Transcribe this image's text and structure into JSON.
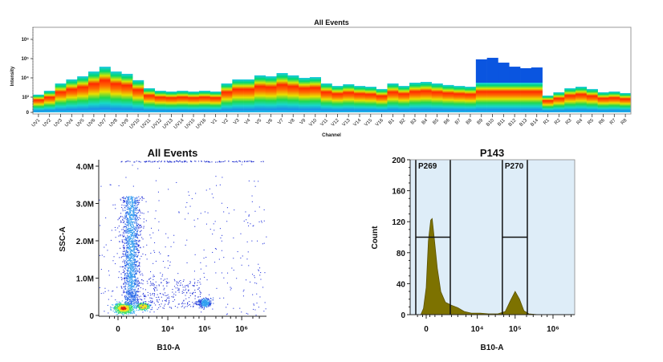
{
  "chart_data": [
    {
      "type": "heatmap",
      "title": "All Events",
      "xlabel": "Channel",
      "ylabel": "Intensity",
      "y_ticks": [
        "0",
        "10³",
        "10⁴",
        "10⁵",
        "10⁶"
      ],
      "y_scale": "log",
      "channels": [
        "UV1",
        "UV2",
        "UV3",
        "UV4",
        "UV5",
        "UV6",
        "UV7",
        "UV8",
        "UV9",
        "UV10",
        "UV11",
        "UV12",
        "UV13",
        "UV14",
        "UV15",
        "UV16",
        "V1",
        "V2",
        "V3",
        "V4",
        "V5",
        "V6",
        "V7",
        "V8",
        "V9",
        "V10",
        "V11",
        "V12",
        "V13",
        "V14",
        "V15",
        "V16",
        "B1",
        "B2",
        "B3",
        "B4",
        "B5",
        "B6",
        "B7",
        "B8",
        "B9",
        "B10",
        "B11",
        "B12",
        "B13",
        "B14",
        "R1",
        "R2",
        "R3",
        "R4",
        "R5",
        "R6",
        "R7",
        "R8"
      ],
      "top_log10_intensity": [
        3.13,
        3.33,
        3.71,
        3.92,
        4.08,
        4.33,
        4.58,
        4.33,
        4.21,
        3.88,
        3.46,
        3.33,
        3.29,
        3.33,
        3.29,
        3.33,
        3.29,
        3.71,
        3.92,
        3.92,
        4.13,
        4.08,
        4.25,
        4.13,
        4.0,
        4.04,
        3.71,
        3.58,
        3.67,
        3.58,
        3.54,
        3.42,
        3.71,
        3.58,
        3.75,
        3.79,
        3.71,
        3.63,
        3.58,
        3.54,
        4.96,
        5.04,
        4.79,
        4.58,
        4.5,
        4.54,
        3.08,
        3.25,
        3.46,
        3.54,
        3.42,
        3.25,
        3.29,
        3.21
      ],
      "high_tail_channels": [
        "B9",
        "B10",
        "B11",
        "B12",
        "B13",
        "B14"
      ],
      "high_tail_floor_log10": 3.75,
      "colors": {
        "low": "#1ec8e8",
        "mid": "#00d060",
        "high": "#ff2000",
        "tail": "#0a55e0"
      }
    },
    {
      "type": "scatter",
      "title": "All Events",
      "xlabel": "B10-A",
      "ylabel": "SSC-A",
      "x_scale": "biexponential",
      "x_ticks": [
        "0",
        "10⁴",
        "10⁵",
        "10⁶"
      ],
      "y_ticks": [
        "0",
        "1.0M",
        "2.0M",
        "3.0M",
        "4.0M"
      ],
      "ylim": [
        0,
        4200000
      ],
      "populations": [
        {
          "x": 300,
          "y": 200000,
          "density": "highest"
        },
        {
          "x": 2000,
          "y": 250000,
          "density": "high"
        },
        {
          "x": 800,
          "y": 1800000,
          "density": "medium",
          "y_spread": [
            300000,
            3200000
          ]
        },
        {
          "x": 100000,
          "y": 350000,
          "density": "medium"
        }
      ]
    },
    {
      "type": "area",
      "title": "P143",
      "xlabel": "B10-A",
      "ylabel": "Count",
      "x_scale": "biexponential",
      "x_ticks": [
        "0",
        "10⁴",
        "10⁵",
        "10⁶"
      ],
      "y_ticks": [
        "0",
        "40",
        "80",
        "120",
        "160",
        "200"
      ],
      "ylim": [
        0,
        200
      ],
      "fill": "#7d7200",
      "background": "#deedf8",
      "histogram": [
        [
          -300,
          0
        ],
        [
          -150,
          8
        ],
        [
          0,
          35
        ],
        [
          120,
          95
        ],
        [
          250,
          122
        ],
        [
          330,
          124
        ],
        [
          450,
          100
        ],
        [
          650,
          60
        ],
        [
          900,
          30
        ],
        [
          1300,
          16
        ],
        [
          2000,
          12
        ],
        [
          3000,
          9
        ],
        [
          4500,
          4
        ],
        [
          7000,
          2
        ],
        [
          12000,
          2
        ],
        [
          20000,
          1
        ],
        [
          35000,
          1
        ],
        [
          55000,
          4
        ],
        [
          75000,
          18
        ],
        [
          100000,
          30
        ],
        [
          130000,
          20
        ],
        [
          170000,
          5
        ],
        [
          230000,
          1
        ],
        [
          400000,
          0
        ],
        [
          2000000,
          0
        ]
      ],
      "gates": [
        {
          "name": "P269",
          "x_range": [
            -610,
            1840
          ],
          "level": 100
        },
        {
          "name": "P270",
          "x_range": [
            46000,
            210000
          ],
          "level": 100
        }
      ]
    }
  ]
}
